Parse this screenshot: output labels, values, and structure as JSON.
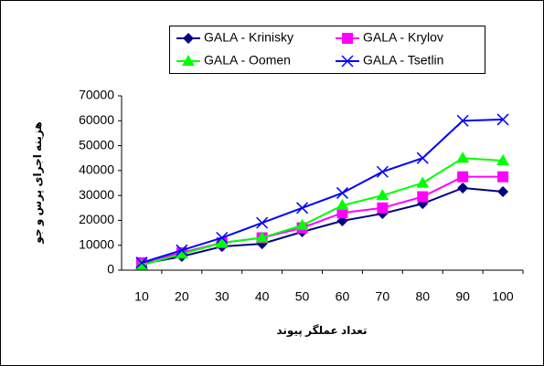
{
  "chart_data": {
    "type": "line",
    "categories": [
      "10",
      "20",
      "30",
      "40",
      "50",
      "60",
      "70",
      "80",
      "90",
      "100"
    ],
    "series": [
      {
        "name": "GALA - Krinisky",
        "color": "#000080",
        "marker": "diamond",
        "values": [
          2500,
          5500,
          9500,
          10600,
          15400,
          19800,
          22700,
          26700,
          33000,
          31500
        ]
      },
      {
        "name": "GALA - Krylov",
        "color": "#ff00ff",
        "marker": "square",
        "values": [
          3000,
          7000,
          11000,
          13000,
          17000,
          23000,
          25000,
          29500,
          37500,
          37500
        ]
      },
      {
        "name": "GALA - Oomen",
        "color": "#00ff00",
        "marker": "triangle",
        "values": [
          2000,
          6500,
          11000,
          13000,
          18000,
          26000,
          30000,
          35000,
          45000,
          44000
        ]
      },
      {
        "name": "GALA - Tsetlin",
        "color": "#0000ff",
        "marker": "cross",
        "values": [
          3000,
          8000,
          13000,
          19000,
          25000,
          31000,
          39500,
          45000,
          60000,
          60500
        ]
      }
    ],
    "ylim": [
      0,
      70000
    ],
    "yticks": [
      0,
      10000,
      20000,
      30000,
      40000,
      50000,
      60000,
      70000
    ],
    "x_label": "تعداد عملگر پیوند",
    "y_label": "هزینه اجرای پرس و جو",
    "grid": false
  }
}
